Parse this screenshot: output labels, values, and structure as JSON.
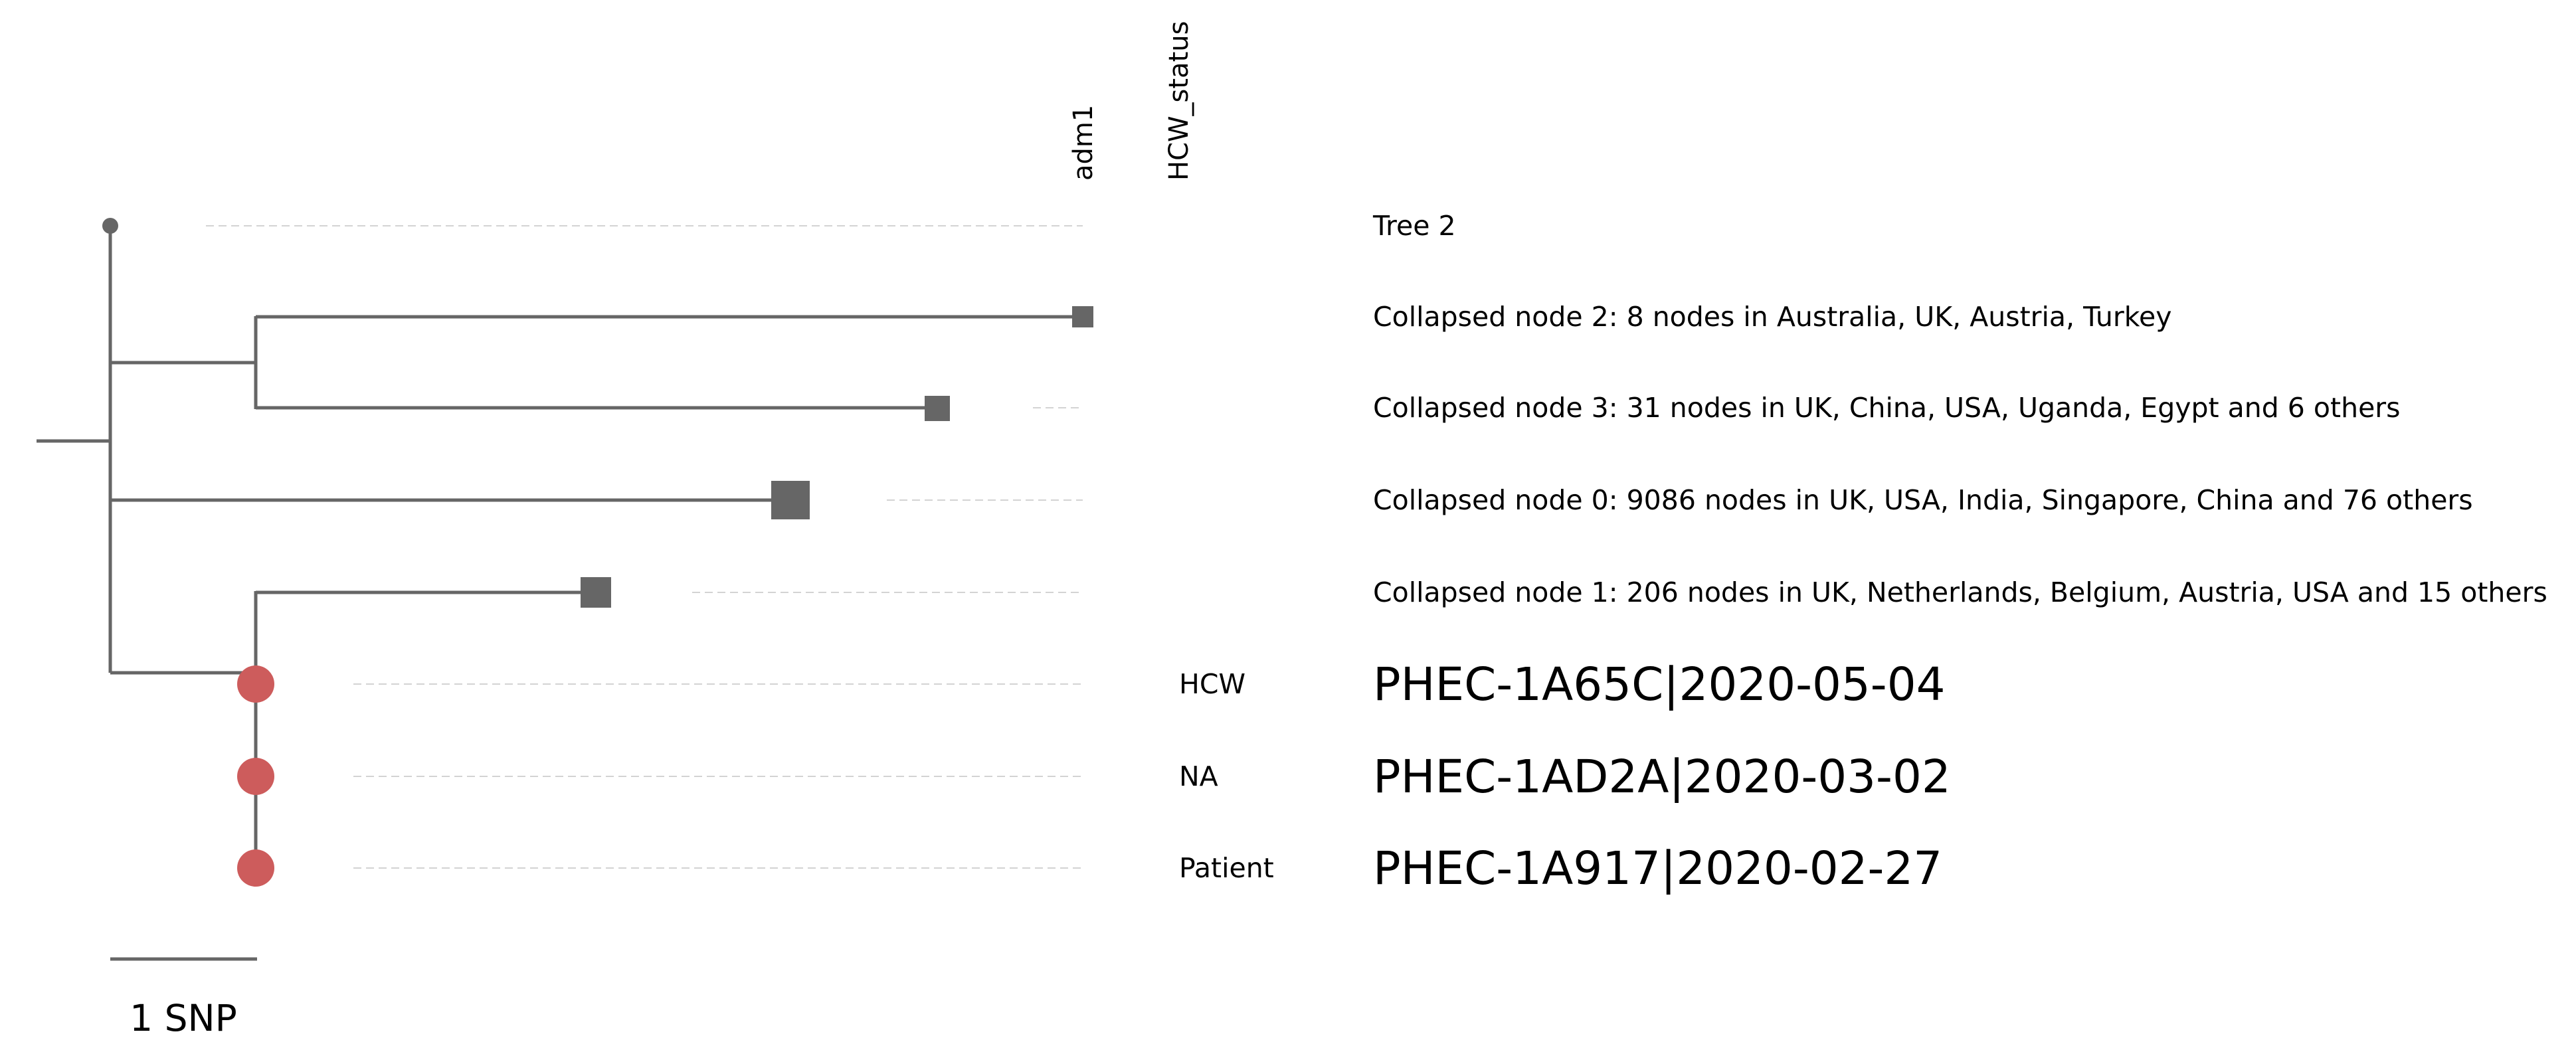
{
  "tree": {
    "columns": [
      "adm1",
      "HCW_status"
    ],
    "tip_labels": [
      "Tree 2",
      "Collapsed node 2: 8 nodes in Australia, UK, Austria, Turkey",
      "Collapsed node 3: 31 nodes in UK, China, USA, Uganda, Egypt and 6 others",
      "Collapsed node 0: 9086 nodes in UK, USA, India, Singapore, China and 76 others",
      "Collapsed node 1: 206 nodes in UK, Netherlands, Belgium, Austria, USA and 15 others",
      "PHEC-1A65C|2020-05-04",
      "PHEC-1AD2A|2020-03-02",
      "PHEC-1A917|2020-02-27"
    ],
    "hcw_status": [
      "HCW",
      "NA",
      "Patient"
    ],
    "scale_bar_label": "1 SNP"
  },
  "colors": {
    "branch": "#666666",
    "collapsed_node": "#666666",
    "highlight_tip": "#cd5c5c",
    "guide_line": "#d3d3d3"
  }
}
